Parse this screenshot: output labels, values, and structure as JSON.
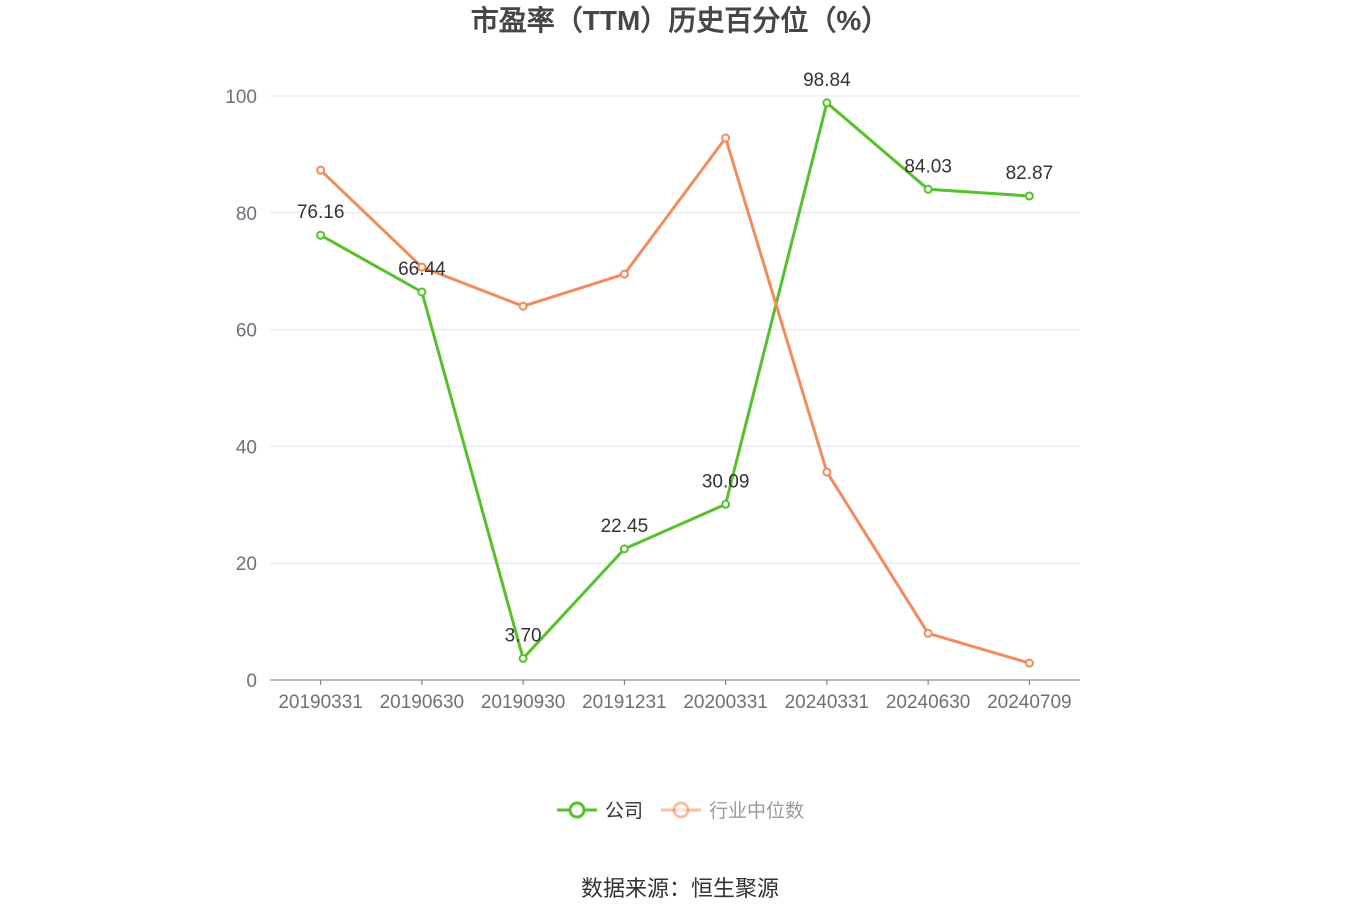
{
  "chart_data": {
    "type": "line",
    "title": "市盈率（TTM）历史百分位（%）",
    "categories": [
      "20190331",
      "20190630",
      "20190930",
      "20191231",
      "20200331",
      "20240331",
      "20240630",
      "20240709"
    ],
    "ylim": [
      0,
      100
    ],
    "yticks": [
      0,
      20,
      40,
      60,
      80,
      100
    ],
    "grid": true,
    "legend_position": "bottom",
    "series": [
      {
        "name": "公司",
        "color": "#56c22b",
        "values": [
          76.16,
          66.44,
          3.7,
          22.45,
          30.09,
          98.84,
          84.03,
          82.87
        ],
        "labels": [
          "76.16",
          "66.44",
          "3.70",
          "22.45",
          "30.09",
          "98.84",
          "84.03",
          "82.87"
        ]
      },
      {
        "name": "行业中位数",
        "color": "#f38b5c",
        "values": [
          87.3,
          70.7,
          64.0,
          69.5,
          92.8,
          35.6,
          8.0,
          2.9
        ]
      }
    ]
  },
  "source": "数据来源：恒生聚源"
}
